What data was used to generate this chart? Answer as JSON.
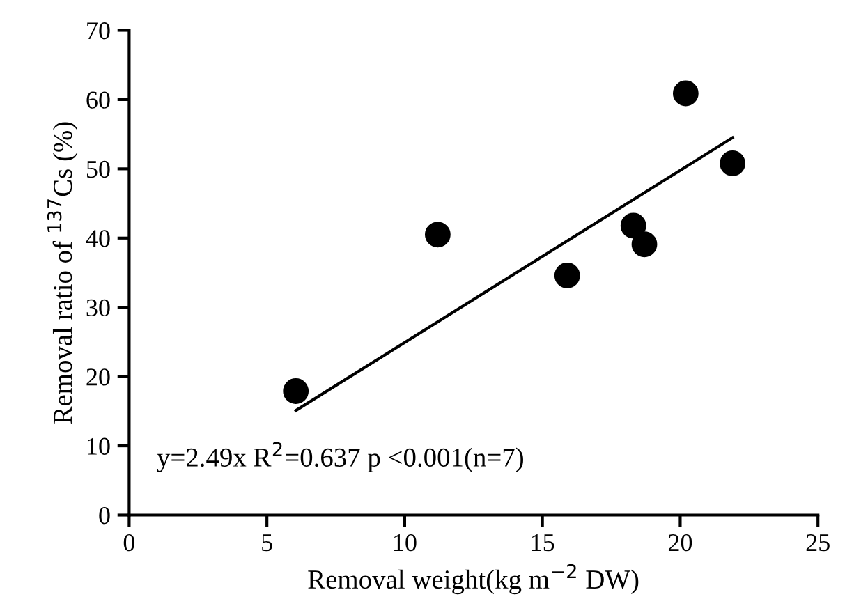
{
  "chart_data": {
    "type": "scatter",
    "xlabel": "Removal weight(kg m$^{−2}$ DW)",
    "ylabel": "Removal ratio of $^{137}$Cs (%)",
    "xlim": [
      0,
      25
    ],
    "ylim": [
      0,
      70
    ],
    "xticks": [
      0,
      5,
      10,
      15,
      20,
      25
    ],
    "yticks": [
      0,
      10,
      20,
      30,
      40,
      50,
      60,
      70
    ],
    "grid": false,
    "legend": false,
    "marker": "circle",
    "annotations": [
      "y=2.49x R$^{2}$=0.637 p <0.001(n=7)"
    ],
    "series": [
      {
        "color": "#000000",
        "x": [
          6.05,
          11.2,
          15.9,
          18.3,
          18.7,
          20.2,
          21.9
        ],
        "values": [
          17.9,
          40.5,
          34.6,
          41.8,
          39.1,
          60.9,
          50.8
        ]
      },
      {
        "type": "line",
        "color": "#000000",
        "line_style": "solid",
        "marker": "none",
        "x": [
          6.05,
          21.9
        ],
        "values": [
          15.1,
          54.5
        ]
      }
    ]
  }
}
